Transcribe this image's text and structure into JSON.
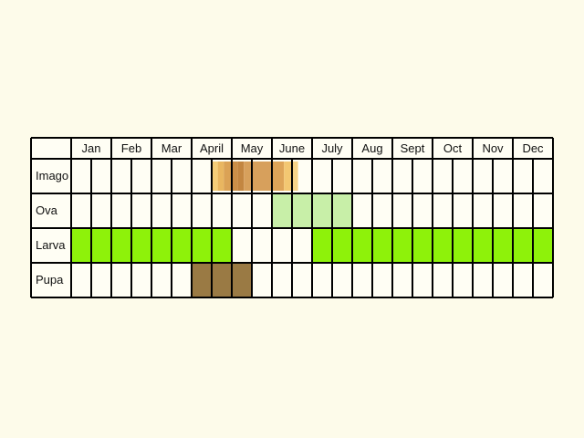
{
  "chart_data": {
    "type": "table",
    "months": [
      "Jan",
      "Feb",
      "Mar",
      "April",
      "May",
      "June",
      "July",
      "Aug",
      "Sept",
      "Oct",
      "Nov",
      "Dec"
    ],
    "subdivisions_per_month": 2,
    "stages": [
      {
        "label": "Imago",
        "periods": [
          {
            "start": 7.0,
            "end": 7.3,
            "color": "#f5cd78"
          },
          {
            "start": 7.3,
            "end": 7.6,
            "color": "#e9b660"
          },
          {
            "start": 7.6,
            "end": 8.0,
            "color": "#dba255"
          },
          {
            "start": 8.0,
            "end": 8.3,
            "color": "#cb8f48"
          },
          {
            "start": 8.3,
            "end": 8.6,
            "color": "#c38641"
          },
          {
            "start": 8.6,
            "end": 10.0,
            "color": "#d7a05c"
          },
          {
            "start": 10.0,
            "end": 10.6,
            "color": "#dea458"
          },
          {
            "start": 10.6,
            "end": 11.0,
            "color": "#f3c772"
          },
          {
            "start": 11.0,
            "end": 11.3,
            "color": "#f6d389"
          }
        ]
      },
      {
        "label": "Ova",
        "periods": [
          {
            "start": 10.0,
            "end": 14.0,
            "color": "#c8efa8"
          }
        ]
      },
      {
        "label": "Larva",
        "periods": [
          {
            "start": 0.0,
            "end": 8.0,
            "color": "#8ef20a"
          },
          {
            "start": 12.0,
            "end": 24.0,
            "color": "#8ef20a"
          }
        ]
      },
      {
        "label": "Pupa",
        "periods": [
          {
            "start": 6.0,
            "end": 9.0,
            "color": "#9a7a44"
          }
        ]
      }
    ]
  }
}
